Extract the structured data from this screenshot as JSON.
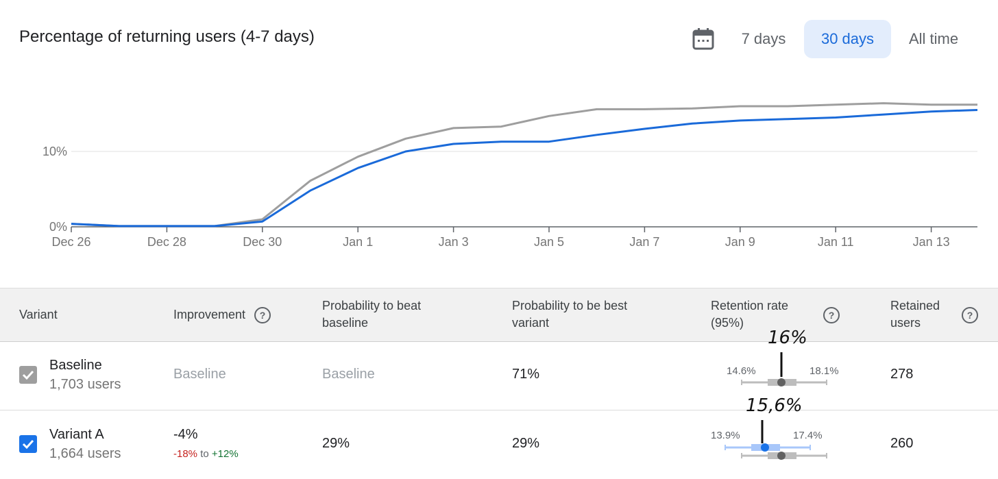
{
  "header": {
    "title": "Percentage of returning users (4-7 days)",
    "ranges": [
      {
        "label": "7 days",
        "active": false
      },
      {
        "label": "30 days",
        "active": true
      },
      {
        "label": "All time",
        "active": false
      }
    ]
  },
  "chart_data": {
    "type": "line",
    "title": "Percentage of returning users (4-7 days)",
    "x_tick_labels": [
      "Dec 26",
      "Dec 28",
      "Dec 30",
      "Jan 1",
      "Jan 3",
      "Jan 5",
      "Jan 7",
      "Jan 9",
      "Jan 11",
      "Jan 13"
    ],
    "y_tick_labels": [
      "0%",
      "10%"
    ],
    "ylim": [
      0,
      20
    ],
    "x": [
      "Dec 26",
      "Dec 27",
      "Dec 28",
      "Dec 29",
      "Dec 30",
      "Dec 31",
      "Jan 1",
      "Jan 2",
      "Jan 3",
      "Jan 4",
      "Jan 5",
      "Jan 6",
      "Jan 7",
      "Jan 8",
      "Jan 9",
      "Jan 10",
      "Jan 11",
      "Jan 12",
      "Jan 13",
      "Jan 14"
    ],
    "series": [
      {
        "color": "#9e9e9e",
        "values": [
          0.4,
          0.1,
          0.1,
          0.1,
          1.0,
          6.1,
          9.3,
          11.7,
          13.1,
          13.3,
          14.7,
          15.6,
          15.6,
          15.7,
          16.0,
          16.0,
          16.2,
          16.4,
          16.2,
          16.2
        ]
      },
      {
        "color": "#1a6ad9",
        "values": [
          0.4,
          0.1,
          0.1,
          0.1,
          0.7,
          4.8,
          7.8,
          10.0,
          11.0,
          11.3,
          11.3,
          12.2,
          13.0,
          13.7,
          14.1,
          14.3,
          14.5,
          14.9,
          15.3,
          15.5
        ]
      }
    ]
  },
  "table": {
    "headers": {
      "variant": "Variant",
      "improvement": "Improvement",
      "prob_beat_1": "Probability to beat",
      "prob_beat_2": "baseline",
      "prob_best_1": "Probability to be best",
      "prob_best_2": "variant",
      "retention_1": "Retention rate",
      "retention_2": "(95%)",
      "retained_1": "Retained",
      "retained_2": "users"
    },
    "rows": [
      {
        "name": "Baseline",
        "users": "1,703 users",
        "checked": true,
        "improvement": "Baseline",
        "prob_beat": "Baseline",
        "prob_best": "71%",
        "ci_low": "14.6%",
        "ci_high": "18.1%",
        "annotation": "16%",
        "retained": "278"
      },
      {
        "name": "Variant A",
        "users": "1,664 users",
        "checked": true,
        "improvement": "-4%",
        "improvement_low": "-18%",
        "improvement_to": "to",
        "improvement_high": "+12%",
        "prob_beat": "29%",
        "prob_best": "29%",
        "ci_low": "13.9%",
        "ci_high": "17.4%",
        "annotation": "15,6%",
        "retained": "260"
      }
    ]
  }
}
